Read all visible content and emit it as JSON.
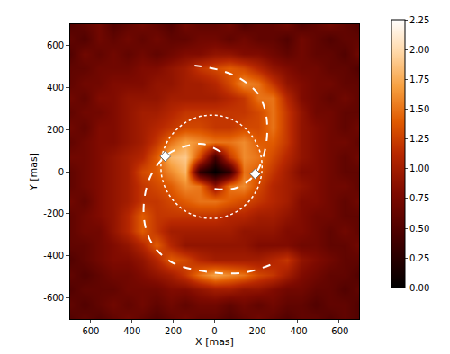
{
  "chart_data": {
    "type": "heatmap",
    "x_label": "X [mas]",
    "y_label": "Y [mas]",
    "xlim": [
      700,
      -700
    ],
    "ylim": [
      -700,
      700
    ],
    "xticks": [
      600,
      400,
      200,
      0,
      -200,
      -400,
      -600
    ],
    "yticks": [
      -600,
      -400,
      -200,
      0,
      200,
      400,
      600
    ],
    "x": [
      700,
      630,
      560,
      490,
      420,
      350,
      280,
      210,
      140,
      70,
      0,
      -70,
      -140,
      -210,
      -280,
      -350,
      -420,
      -490,
      -560,
      -630,
      -700
    ],
    "y": [
      700,
      630,
      560,
      490,
      420,
      350,
      280,
      210,
      140,
      70,
      0,
      -70,
      -140,
      -210,
      -280,
      -350,
      -420,
      -490,
      -560,
      -630,
      -700
    ],
    "z": [
      [
        0.5,
        0.6,
        0.7,
        0.5,
        0.6,
        0.7,
        0.6,
        0.5,
        0.7,
        0.6,
        0.6,
        0.7,
        0.5,
        0.6,
        0.6,
        0.7,
        0.5,
        0.6,
        0.7,
        0.6,
        0.5
      ],
      [
        0.6,
        0.5,
        0.7,
        0.6,
        0.7,
        0.6,
        0.7,
        0.6,
        0.6,
        0.7,
        0.7,
        0.6,
        0.7,
        0.6,
        0.6,
        0.5,
        0.7,
        0.6,
        0.5,
        0.6,
        0.6
      ],
      [
        0.5,
        0.7,
        0.6,
        0.7,
        0.6,
        0.7,
        0.6,
        0.7,
        0.8,
        0.8,
        0.9,
        0.9,
        0.8,
        0.8,
        0.7,
        0.6,
        0.7,
        0.6,
        0.6,
        0.5,
        0.7
      ],
      [
        0.6,
        0.6,
        0.7,
        0.7,
        0.7,
        0.8,
        0.8,
        0.9,
        1.0,
        1.2,
        1.3,
        1.4,
        1.3,
        1.1,
        0.9,
        0.8,
        0.7,
        0.7,
        0.6,
        0.6,
        0.5
      ],
      [
        0.6,
        0.7,
        0.7,
        0.8,
        0.8,
        0.8,
        0.9,
        0.9,
        1.0,
        1.0,
        1.1,
        1.3,
        1.6,
        1.5,
        1.2,
        0.9,
        0.8,
        0.7,
        0.7,
        0.6,
        0.6
      ],
      [
        0.7,
        0.6,
        0.8,
        0.8,
        0.9,
        0.9,
        0.9,
        1.0,
        1.0,
        1.0,
        1.0,
        1.1,
        1.2,
        1.5,
        1.5,
        1.1,
        0.8,
        0.7,
        0.6,
        0.7,
        0.6
      ],
      [
        0.6,
        0.7,
        0.7,
        0.8,
        0.9,
        1.0,
        1.0,
        1.1,
        1.2,
        1.2,
        1.2,
        1.2,
        1.2,
        1.3,
        1.5,
        1.2,
        0.9,
        0.7,
        0.7,
        0.6,
        0.6
      ],
      [
        0.7,
        0.6,
        0.8,
        0.8,
        0.9,
        1.0,
        1.1,
        1.2,
        1.3,
        1.3,
        1.2,
        1.2,
        1.3,
        1.3,
        1.5,
        1.2,
        0.9,
        0.8,
        0.7,
        0.6,
        0.7
      ],
      [
        0.6,
        0.7,
        0.8,
        0.8,
        0.9,
        1.0,
        1.2,
        1.5,
        1.7,
        1.6,
        1.5,
        1.5,
        1.6,
        1.4,
        1.4,
        1.2,
        0.9,
        0.8,
        0.7,
        0.7,
        0.6
      ],
      [
        0.7,
        0.7,
        0.8,
        0.9,
        1.0,
        1.1,
        1.4,
        1.8,
        1.9,
        1.3,
        0.4,
        1.2,
        1.6,
        1.5,
        1.3,
        1.1,
        0.9,
        0.8,
        0.7,
        0.6,
        0.7
      ],
      [
        0.6,
        0.7,
        0.8,
        0.9,
        1.0,
        1.3,
        1.4,
        1.6,
        1.8,
        0.3,
        0.0,
        0.3,
        1.5,
        1.4,
        1.2,
        1.0,
        0.8,
        0.8,
        0.7,
        0.6,
        0.6
      ],
      [
        0.6,
        0.7,
        0.8,
        0.9,
        1.0,
        1.2,
        1.3,
        1.4,
        1.6,
        1.5,
        0.9,
        1.5,
        1.6,
        1.3,
        1.1,
        1.0,
        0.9,
        0.8,
        0.7,
        0.7,
        0.6
      ],
      [
        0.7,
        0.6,
        0.8,
        0.9,
        1.0,
        1.2,
        1.2,
        1.3,
        1.4,
        1.5,
        1.5,
        1.4,
        1.3,
        1.2,
        1.1,
        1.0,
        0.8,
        0.8,
        0.7,
        0.6,
        0.7
      ],
      [
        0.6,
        0.7,
        0.8,
        0.9,
        1.1,
        1.4,
        1.2,
        1.2,
        1.2,
        1.2,
        1.2,
        1.1,
        1.1,
        1.0,
        1.0,
        0.9,
        0.8,
        0.7,
        0.7,
        0.6,
        0.6
      ],
      [
        0.6,
        0.7,
        0.7,
        0.9,
        1.1,
        1.4,
        1.2,
        1.0,
        1.0,
        1.0,
        1.0,
        1.0,
        0.9,
        0.9,
        0.9,
        0.8,
        0.8,
        0.7,
        0.6,
        0.7,
        0.6
      ],
      [
        0.6,
        0.6,
        0.7,
        0.8,
        0.9,
        1.1,
        1.4,
        1.1,
        0.9,
        0.9,
        0.9,
        0.9,
        0.9,
        0.8,
        0.8,
        0.8,
        0.7,
        0.7,
        0.6,
        0.6,
        0.7
      ],
      [
        0.5,
        0.6,
        0.7,
        0.8,
        0.8,
        0.9,
        1.1,
        1.4,
        1.3,
        1.1,
        1.0,
        1.0,
        1.0,
        1.0,
        1.1,
        1.2,
        0.9,
        0.8,
        0.7,
        0.6,
        0.6
      ],
      [
        0.6,
        0.5,
        0.6,
        0.7,
        0.7,
        0.8,
        0.9,
        1.0,
        1.2,
        1.5,
        1.7,
        1.6,
        1.5,
        1.3,
        1.2,
        1.0,
        0.8,
        0.7,
        0.6,
        0.6,
        0.5
      ],
      [
        0.5,
        0.6,
        0.6,
        0.6,
        0.7,
        0.7,
        0.7,
        0.8,
        0.8,
        0.9,
        1.0,
        1.0,
        0.9,
        0.9,
        0.8,
        0.7,
        0.7,
        0.6,
        0.6,
        0.5,
        0.6
      ],
      [
        0.6,
        0.5,
        0.6,
        0.7,
        0.6,
        0.7,
        0.6,
        0.7,
        0.6,
        0.7,
        0.7,
        0.6,
        0.7,
        0.6,
        0.7,
        0.6,
        0.6,
        0.5,
        0.6,
        0.6,
        0.5
      ],
      [
        0.5,
        0.6,
        0.5,
        0.6,
        0.7,
        0.6,
        0.5,
        0.6,
        0.7,
        0.6,
        0.6,
        0.5,
        0.6,
        0.7,
        0.6,
        0.5,
        0.6,
        0.6,
        0.5,
        0.6,
        0.5
      ]
    ],
    "colorbar": {
      "range": [
        0,
        2.25
      ],
      "ticks": [
        {
          "value": 0,
          "label": "0.00"
        },
        {
          "value": 0.25,
          "label": "0.25"
        },
        {
          "value": 0.5,
          "label": "0.50"
        },
        {
          "value": 0.75,
          "label": "0.75"
        },
        {
          "value": 1,
          "label": "1.00"
        },
        {
          "value": 1.25,
          "label": "1.25"
        },
        {
          "value": 1.5,
          "label": "1.50"
        },
        {
          "value": 1.75,
          "label": "1.75"
        },
        {
          "value": 2,
          "label": "2.00"
        },
        {
          "value": 2.25,
          "label": "2.25"
        }
      ]
    },
    "lines": [
      {
        "line_style": "dashed",
        "color": "#ffffff",
        "x": [
          0,
          -104,
          -197,
          -247,
          -251,
          -213,
          -125,
          -21,
          97
        ],
        "y": [
          -82,
          -78,
          -11,
          115,
          261,
          366,
          441,
          483,
          504
        ]
      },
      {
        "line_style": "dashed",
        "color": "#ffffff",
        "x": [
          -29,
          55,
          160,
          239,
          315,
          344,
          306,
          210,
          42,
          -146,
          -306
        ],
        "y": [
          94,
          131,
          115,
          73,
          -32,
          -199,
          -337,
          -429,
          -475,
          -479,
          -429
        ]
      },
      {
        "line_style": "dotted",
        "color": "#ffffff",
        "x": [
          260,
          252,
          227,
          188,
          138,
          78,
          15,
          -48,
          -108,
          -158,
          -197,
          -222,
          -230,
          -222,
          -197,
          -158,
          -108,
          -48,
          15,
          78,
          138,
          188,
          227,
          252,
          260
        ],
        "y": [
          23,
          86,
          146,
          196,
          235,
          260,
          268,
          260,
          235,
          196,
          146,
          86,
          23,
          -40,
          -100,
          -150,
          -189,
          -214,
          -222,
          -214,
          -189,
          -150,
          -100,
          -40,
          23
        ]
      }
    ],
    "markers": {
      "marker": "diamond",
      "color": "#ffffff",
      "x": [
        239,
        -197
      ],
      "y": [
        73,
        -11
      ]
    }
  }
}
